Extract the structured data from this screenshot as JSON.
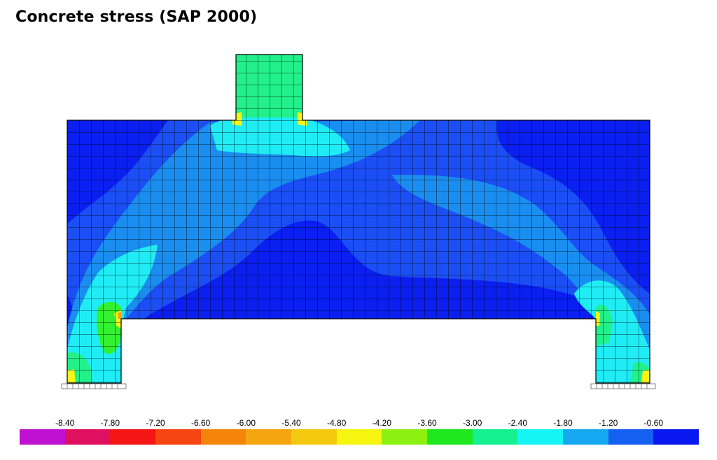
{
  "title": "Concrete stress (SAP 2000)",
  "colors": {
    "background": "#ffffff",
    "mesh": "#000000",
    "deep_blue": "#0a1ff0",
    "blue": "#1b4ff5",
    "mid_blue": "#1a8ef0",
    "cyan": "#20ecf5",
    "aqua_green": "#22f08a",
    "green": "#33f030",
    "yellow": "#f5f51a",
    "orange": "#f5a20a"
  },
  "legend": {
    "labels": [
      "-8.40",
      "-7.80",
      "-7.20",
      "-6.60",
      "-6.00",
      "-5.40",
      "-4.80",
      "-4.20",
      "-3.60",
      "-3.00",
      "-2.40",
      "-1.80",
      "-1.20",
      "-0.60"
    ],
    "swatches": [
      "#c010d0",
      "#e01060",
      "#f51515",
      "#f54510",
      "#f5850a",
      "#f5a50f",
      "#f5c810",
      "#f5f510",
      "#8cf010",
      "#20e820",
      "#15f090",
      "#15f5f5",
      "#15a8f0",
      "#1560f0",
      "#0a18f0"
    ]
  }
}
